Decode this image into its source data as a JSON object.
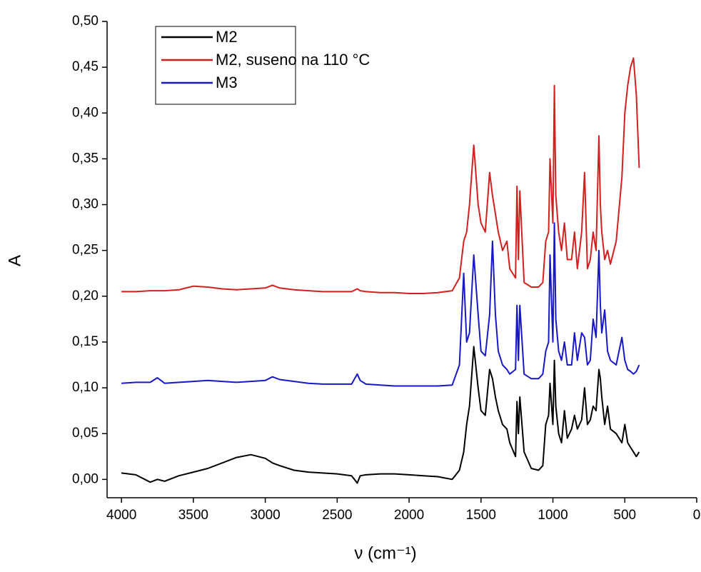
{
  "chart_data": {
    "type": "line",
    "xlabel": "ν  (cm⁻¹)",
    "ylabel": "A",
    "x": [
      4000,
      3900,
      3800,
      3750,
      3700,
      3600,
      3500,
      3400,
      3300,
      3200,
      3100,
      3000,
      2950,
      2900,
      2800,
      2700,
      2600,
      2500,
      2400,
      2360,
      2340,
      2300,
      2200,
      2100,
      2000,
      1900,
      1800,
      1700,
      1650,
      1620,
      1600,
      1580,
      1550,
      1520,
      1500,
      1470,
      1440,
      1420,
      1400,
      1380,
      1350,
      1320,
      1300,
      1260,
      1250,
      1240,
      1230,
      1200,
      1150,
      1100,
      1070,
      1050,
      1030,
      1020,
      1000,
      990,
      980,
      960,
      940,
      920,
      900,
      870,
      850,
      830,
      800,
      780,
      760,
      740,
      720,
      700,
      680,
      670,
      660,
      640,
      620,
      600,
      560,
      520,
      500,
      480,
      460,
      440,
      420,
      400
    ],
    "series": [
      {
        "name": "M2",
        "color": "#000000",
        "values": [
          0.007,
          0.005,
          -0.003,
          0.0,
          -0.002,
          0.004,
          0.008,
          0.012,
          0.018,
          0.024,
          0.027,
          0.023,
          0.018,
          0.015,
          0.01,
          0.008,
          0.007,
          0.006,
          0.004,
          -0.004,
          0.004,
          0.005,
          0.006,
          0.006,
          0.005,
          0.004,
          0.003,
          0.0,
          0.01,
          0.03,
          0.06,
          0.08,
          0.145,
          0.1,
          0.075,
          0.07,
          0.12,
          0.11,
          0.09,
          0.075,
          0.06,
          0.055,
          0.04,
          0.025,
          0.085,
          0.05,
          0.09,
          0.03,
          0.012,
          0.01,
          0.015,
          0.06,
          0.07,
          0.105,
          0.06,
          0.13,
          0.08,
          0.05,
          0.04,
          0.075,
          0.045,
          0.055,
          0.07,
          0.055,
          0.065,
          0.1,
          0.06,
          0.065,
          0.08,
          0.075,
          0.12,
          0.11,
          0.09,
          0.06,
          0.08,
          0.055,
          0.05,
          0.04,
          0.06,
          0.04,
          0.035,
          0.03,
          0.025,
          0.03
        ]
      },
      {
        "name": "M2, suseno na 110 °C",
        "color": "#d41f1f",
        "values": [
          0.205,
          0.205,
          0.206,
          0.206,
          0.206,
          0.207,
          0.211,
          0.21,
          0.208,
          0.207,
          0.208,
          0.209,
          0.212,
          0.209,
          0.207,
          0.206,
          0.205,
          0.205,
          0.205,
          0.208,
          0.206,
          0.205,
          0.204,
          0.204,
          0.203,
          0.203,
          0.204,
          0.206,
          0.22,
          0.26,
          0.27,
          0.3,
          0.365,
          0.3,
          0.28,
          0.27,
          0.335,
          0.31,
          0.29,
          0.27,
          0.25,
          0.26,
          0.23,
          0.22,
          0.32,
          0.24,
          0.315,
          0.215,
          0.21,
          0.21,
          0.215,
          0.26,
          0.27,
          0.35,
          0.28,
          0.43,
          0.31,
          0.27,
          0.25,
          0.28,
          0.24,
          0.24,
          0.27,
          0.23,
          0.27,
          0.335,
          0.23,
          0.24,
          0.27,
          0.25,
          0.375,
          0.3,
          0.27,
          0.24,
          0.25,
          0.235,
          0.26,
          0.33,
          0.4,
          0.43,
          0.45,
          0.46,
          0.42,
          0.34
        ]
      },
      {
        "name": "M3",
        "color": "#1818c8",
        "values": [
          0.105,
          0.106,
          0.106,
          0.111,
          0.105,
          0.106,
          0.107,
          0.108,
          0.107,
          0.106,
          0.107,
          0.108,
          0.112,
          0.109,
          0.107,
          0.105,
          0.104,
          0.104,
          0.104,
          0.115,
          0.108,
          0.104,
          0.103,
          0.102,
          0.102,
          0.102,
          0.102,
          0.103,
          0.125,
          0.225,
          0.15,
          0.16,
          0.245,
          0.18,
          0.14,
          0.135,
          0.18,
          0.26,
          0.18,
          0.14,
          0.125,
          0.12,
          0.115,
          0.12,
          0.19,
          0.13,
          0.19,
          0.115,
          0.11,
          0.11,
          0.115,
          0.14,
          0.15,
          0.245,
          0.15,
          0.28,
          0.175,
          0.14,
          0.13,
          0.15,
          0.125,
          0.125,
          0.16,
          0.13,
          0.16,
          0.155,
          0.125,
          0.13,
          0.175,
          0.155,
          0.25,
          0.19,
          0.16,
          0.185,
          0.14,
          0.13,
          0.125,
          0.155,
          0.13,
          0.12,
          0.118,
          0.115,
          0.118,
          0.125
        ]
      }
    ],
    "xlim": [
      4100,
      0
    ],
    "xticks": [
      4000,
      3500,
      3000,
      2500,
      2000,
      1500,
      1000,
      500,
      0
    ],
    "ylim": [
      -0.02,
      0.5
    ],
    "yticks": [
      {
        "value": 0,
        "label": "0,00"
      },
      {
        "value": 0.05,
        "label": "0,05"
      },
      {
        "value": 0.1,
        "label": "0,10"
      },
      {
        "value": 0.15,
        "label": "0,15"
      },
      {
        "value": 0.2,
        "label": "0,20"
      },
      {
        "value": 0.25,
        "label": "0,25"
      },
      {
        "value": 0.3,
        "label": "0,30"
      },
      {
        "value": 0.35,
        "label": "0,35"
      },
      {
        "value": 0.4,
        "label": "0,40"
      },
      {
        "value": 0.45,
        "label": "0,45"
      },
      {
        "value": 0.5,
        "label": "0,50"
      }
    ],
    "legend": "upper left"
  }
}
